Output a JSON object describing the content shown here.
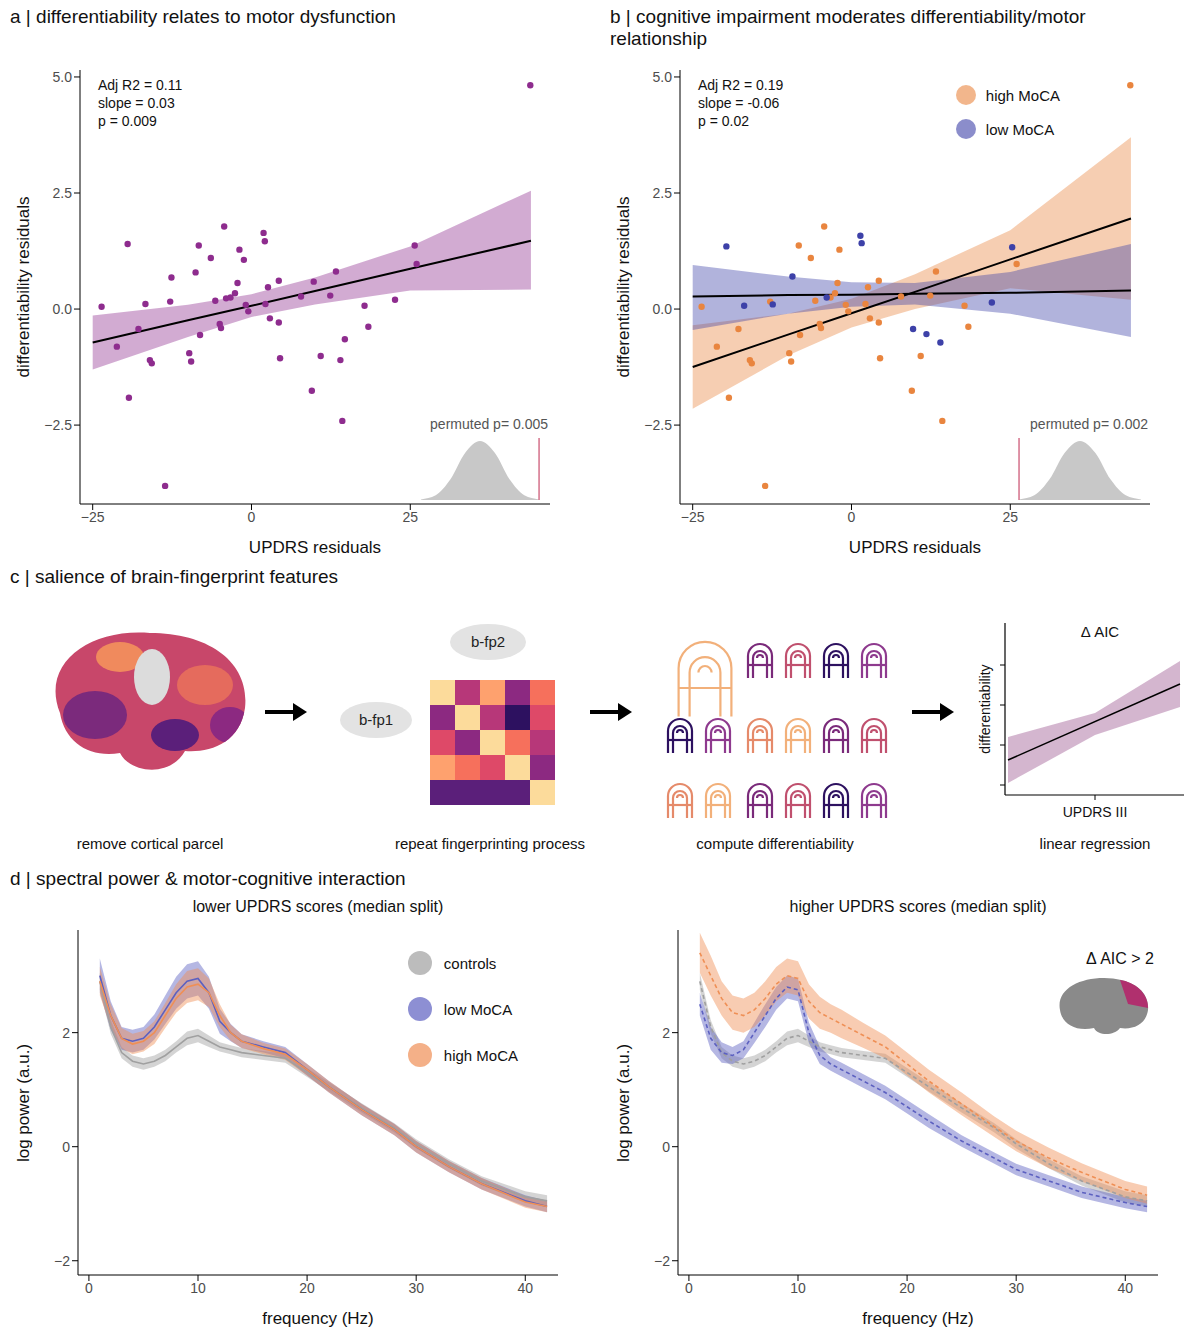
{
  "chart_data": [
    {
      "type": "scatter",
      "title": "a | differentiability relates to motor dysfunction",
      "x_label": "UPDRS residuals",
      "y_label": "differentiability residuals",
      "xlim": [
        -27,
        47
      ],
      "xticks": [
        {
          "value": -25,
          "label": "−25"
        },
        0,
        25
      ],
      "ylim": [
        -4.2,
        5.15
      ],
      "yticks": [
        {
          "value": -2.5,
          "label": "−2.5"
        },
        {
          "value": 0,
          "label": "0.0"
        },
        2.5,
        {
          "value": 5,
          "label": "5.0"
        }
      ],
      "annotations": [
        "Adj R2 = 0.11",
        "slope = 0.03",
        "p = 0.009"
      ],
      "permutation": {
        "label": "permuted p= 0.005",
        "x": [
          -0.03,
          -0.0225,
          -0.015,
          -0.0075,
          0,
          0.0075,
          0.015,
          0.0225,
          0.03
        ],
        "density": [
          0.01,
          0.08,
          0.35,
          0.8,
          1,
          0.8,
          0.35,
          0.08,
          0.01
        ],
        "observed": 0.03,
        "xlim": [
          -0.032,
          0.032
        ],
        "ylim": [
          0,
          1.05
        ],
        "tick_labels": false
      },
      "series": [
        {
          "color": "#8e2c8e",
          "x": [
            -23.6,
            -21.2,
            -19.5,
            -19.3,
            -17.8,
            -16.7,
            -16.0,
            -15.7,
            -13.6,
            -12.8,
            -12.6,
            -9.8,
            -9.5,
            -8.8,
            -8.3,
            -8.1,
            -6.4,
            -5.7,
            -5.0,
            -4.8,
            -4.3,
            -4.0,
            -3.3,
            -2.6,
            -2.2,
            -1.9,
            -1.2,
            -0.9,
            -0.5,
            1.9,
            2.1,
            2.2,
            2.6,
            2.9,
            4.3,
            4.3,
            4.5,
            7.8,
            9.5,
            9.8,
            10.9,
            12.4,
            13.3,
            14.0,
            14.3,
            14.7,
            17.8,
            18.4,
            22.6,
            25.7,
            26.0,
            43.9
          ],
          "values": [
            0.05,
            -0.81,
            1.4,
            -1.91,
            -0.43,
            0.11,
            -1.1,
            -1.17,
            -3.81,
            0.16,
            0.68,
            -0.95,
            -1.13,
            0.79,
            1.37,
            -0.56,
            1.1,
            0.18,
            -0.32,
            -0.41,
            1.78,
            0.23,
            0.25,
            0.34,
            0.56,
            1.28,
            1.06,
            0.09,
            -0.05,
            1.64,
            1.46,
            0.11,
            0.47,
            -0.2,
            0.61,
            -0.29,
            -1.06,
            0.27,
            -1.76,
            0.59,
            -1.01,
            0.29,
            0.81,
            -1.1,
            -2.41,
            -0.65,
            0.07,
            -0.38,
            0.2,
            1.37,
            0.97,
            4.82
          ],
          "fit": {
            "x": [
              -25,
              -10,
              0,
              10,
              25,
              44
            ],
            "values": [
              -0.72,
              -0.24,
              0.07,
              0.39,
              0.87,
              1.47
            ],
            "lower": [
              -1.3,
              -0.6,
              -0.17,
              0.1,
              0.4,
              0.42
            ],
            "upper": [
              -0.14,
              0.09,
              0.32,
              0.68,
              1.35,
              2.55
            ]
          }
        }
      ]
    },
    {
      "type": "scatter",
      "title": "b | cognitive impairment moderates differentiability/motor relationship",
      "x_label": "UPDRS residuals",
      "y_label": "differentiability residuals",
      "xlim": [
        -27,
        47
      ],
      "xticks": [
        {
          "value": -25,
          "label": "−25"
        },
        0,
        25
      ],
      "ylim": [
        -4.2,
        5.15
      ],
      "yticks": [
        {
          "value": -2.5,
          "label": "−2.5"
        },
        {
          "value": 0,
          "label": "0.0"
        },
        2.5,
        {
          "value": 5,
          "label": "5.0"
        }
      ],
      "annotations": [
        "Adj R2 = 0.19",
        "slope = -0.06",
        "p = 0.02"
      ],
      "legend": "top-right",
      "permutation": {
        "label": "permuted p= 0.002",
        "x": [
          -0.06,
          -0.045,
          -0.03,
          -0.015,
          0,
          0.015,
          0.03,
          0.045,
          0.06
        ],
        "density": [
          0.01,
          0.08,
          0.35,
          0.8,
          1,
          0.8,
          0.35,
          0.08,
          0.01
        ],
        "observed": -0.06,
        "xlim": [
          -0.062,
          0.062
        ],
        "ylim": [
          0,
          1.05
        ],
        "tick_labels": false
      },
      "series": [
        {
          "name": "high MoCA",
          "color": "#e9853f",
          "x": [
            -23.6,
            -21.2,
            -19.3,
            -17.8,
            -16.0,
            -15.7,
            -13.6,
            -12.8,
            -9.8,
            -9.5,
            -8.3,
            -8.1,
            -6.4,
            -5.7,
            -5.0,
            -4.8,
            -4.3,
            -3.3,
            -2.6,
            -2.2,
            -1.9,
            -0.9,
            -0.5,
            2.2,
            2.6,
            2.9,
            4.3,
            4.3,
            4.5,
            7.8,
            9.5,
            10.9,
            12.4,
            13.3,
            14.3,
            17.8,
            18.4,
            26.0,
            43.9
          ],
          "values": [
            0.05,
            -0.81,
            -1.91,
            -0.43,
            -1.1,
            -1.17,
            -3.81,
            0.16,
            -0.95,
            -1.13,
            1.37,
            -0.56,
            1.1,
            0.18,
            -0.32,
            -0.41,
            1.78,
            0.25,
            0.34,
            0.56,
            1.28,
            0.09,
            -0.05,
            0.11,
            0.47,
            -0.2,
            0.61,
            -0.29,
            -1.06,
            0.27,
            -1.76,
            -1.01,
            0.29,
            0.81,
            -2.41,
            0.07,
            -0.38,
            0.97,
            4.82
          ],
          "fit": {
            "x": [
              -25,
              -10,
              0,
              10,
              25,
              44
            ],
            "values": [
              -1.25,
              -0.55,
              -0.09,
              0.37,
              1.07,
              1.95
            ],
            "lower": [
              -2.15,
              -1.0,
              -0.4,
              0.0,
              0.45,
              0.2
            ],
            "upper": [
              -0.35,
              -0.1,
              0.22,
              0.75,
              1.7,
              3.7
            ]
          }
        },
        {
          "name": "low MoCA",
          "color": "#3d41a8",
          "x": [
            -19.7,
            -16.9,
            -12.4,
            -9.3,
            -3.9,
            1.4,
            1.6,
            9.7,
            11.8,
            14.0,
            22.1,
            25.3
          ],
          "values": [
            1.35,
            0.07,
            0.1,
            0.7,
            0.25,
            1.58,
            1.42,
            -0.43,
            -0.54,
            -0.72,
            0.14,
            1.33
          ],
          "fit": {
            "x": [
              -25,
              -10,
              0,
              10,
              25,
              44
            ],
            "values": [
              0.27,
              0.3,
              0.31,
              0.33,
              0.35,
              0.4
            ],
            "lower": [
              -0.45,
              -0.1,
              0.05,
              0.1,
              -0.1,
              -0.6
            ],
            "upper": [
              0.95,
              0.7,
              0.58,
              0.56,
              0.8,
              1.4
            ]
          }
        }
      ]
    },
    {
      "type": "line",
      "title": "lower UPDRS scores (median split)",
      "x_label": "frequency (Hz)",
      "y_label": "log power (a.u.)",
      "x": [
        1,
        2,
        3,
        4,
        5,
        6,
        7,
        8,
        9,
        10,
        11,
        12,
        13,
        14,
        16,
        18,
        20,
        22,
        25,
        28,
        30,
        33,
        36,
        40,
        42
      ],
      "xlim": [
        -1,
        43
      ],
      "xticks": [
        0,
        10,
        20,
        30,
        40
      ],
      "ylim": [
        -2.25,
        3.8
      ],
      "yticks": [
        {
          "value": -2,
          "label": "−2"
        },
        0,
        2
      ],
      "legend": "top-right",
      "series": [
        {
          "name": "controls",
          "color": "#a0a0a0",
          "line_style": "solid",
          "values": [
            2.9,
            2.1,
            1.65,
            1.5,
            1.45,
            1.5,
            1.6,
            1.75,
            1.9,
            1.95,
            1.85,
            1.75,
            1.7,
            1.65,
            1.6,
            1.55,
            1.3,
            1.05,
            0.68,
            0.33,
            0.05,
            -0.3,
            -0.6,
            -0.88,
            -0.95
          ],
          "error": [
            0.15,
            0.12,
            0.1,
            0.1,
            0.1,
            0.1,
            0.1,
            0.1,
            0.12,
            0.12,
            0.1,
            0.08,
            0.08,
            0.08,
            0.08,
            0.08,
            0.08,
            0.08,
            0.08,
            0.08,
            0.08,
            0.08,
            0.08,
            0.1,
            0.1
          ]
        },
        {
          "name": "low MoCA",
          "color": "#5c60c0",
          "line_style": "solid",
          "values": [
            3.0,
            2.3,
            1.9,
            1.85,
            1.9,
            2.1,
            2.4,
            2.7,
            2.9,
            2.95,
            2.7,
            2.2,
            2.0,
            1.85,
            1.75,
            1.65,
            1.35,
            1.05,
            0.65,
            0.3,
            0.0,
            -0.35,
            -0.65,
            -0.95,
            -1.05
          ],
          "error": [
            0.3,
            0.25,
            0.2,
            0.2,
            0.2,
            0.22,
            0.25,
            0.28,
            0.3,
            0.3,
            0.28,
            0.22,
            0.15,
            0.12,
            0.1,
            0.1,
            0.1,
            0.1,
            0.1,
            0.1,
            0.1,
            0.1,
            0.1,
            0.1,
            0.1
          ]
        },
        {
          "name": "high MoCA",
          "color": "#ef8f55",
          "line_style": "solid",
          "values": [
            2.9,
            2.3,
            1.9,
            1.8,
            1.85,
            2.0,
            2.3,
            2.6,
            2.8,
            2.85,
            2.7,
            2.3,
            2.0,
            1.85,
            1.72,
            1.62,
            1.35,
            1.05,
            0.65,
            0.3,
            0.0,
            -0.35,
            -0.65,
            -0.97,
            -1.05
          ],
          "error": [
            0.25,
            0.2,
            0.18,
            0.18,
            0.18,
            0.2,
            0.22,
            0.25,
            0.28,
            0.28,
            0.25,
            0.2,
            0.14,
            0.12,
            0.1,
            0.1,
            0.1,
            0.1,
            0.1,
            0.1,
            0.1,
            0.1,
            0.1,
            0.1,
            0.1
          ]
        }
      ]
    },
    {
      "type": "line",
      "title": "higher UPDRS scores (median split)",
      "x_label": "frequency (Hz)",
      "y_label": "log power (a.u.)",
      "x": [
        1,
        2,
        3,
        4,
        5,
        6,
        7,
        8,
        9,
        10,
        11,
        12,
        13,
        14,
        16,
        18,
        20,
        22,
        25,
        28,
        30,
        33,
        36,
        40,
        42
      ],
      "xlim": [
        -1,
        43
      ],
      "xticks": [
        0,
        10,
        20,
        30,
        40
      ],
      "ylim": [
        -2.25,
        3.8
      ],
      "yticks": [
        {
          "value": -2,
          "label": "−2"
        },
        0,
        2
      ],
      "annotation": "Δ AIC > 2",
      "series": [
        {
          "name": "controls",
          "color": "#a0a0a0",
          "line_style": "dashed",
          "values": [
            2.9,
            2.1,
            1.65,
            1.5,
            1.45,
            1.5,
            1.6,
            1.75,
            1.9,
            1.95,
            1.85,
            1.75,
            1.7,
            1.65,
            1.6,
            1.55,
            1.3,
            1.05,
            0.68,
            0.33,
            0.05,
            -0.3,
            -0.6,
            -0.88,
            -0.95
          ],
          "error": [
            0.15,
            0.12,
            0.1,
            0.1,
            0.1,
            0.1,
            0.1,
            0.1,
            0.12,
            0.12,
            0.1,
            0.08,
            0.08,
            0.08,
            0.08,
            0.08,
            0.08,
            0.08,
            0.08,
            0.08,
            0.08,
            0.08,
            0.08,
            0.1,
            0.1
          ]
        },
        {
          "name": "low MoCA",
          "color": "#5c60c0",
          "line_style": "dashed",
          "values": [
            2.5,
            1.9,
            1.65,
            1.6,
            1.7,
            2.0,
            2.3,
            2.6,
            2.8,
            2.75,
            2.0,
            1.6,
            1.45,
            1.35,
            1.15,
            0.95,
            0.7,
            0.45,
            0.1,
            -0.2,
            -0.4,
            -0.6,
            -0.8,
            -0.98,
            -1.05
          ],
          "error": [
            0.2,
            0.2,
            0.18,
            0.15,
            0.15,
            0.18,
            0.2,
            0.2,
            0.2,
            0.2,
            0.18,
            0.15,
            0.12,
            0.12,
            0.12,
            0.12,
            0.12,
            0.12,
            0.1,
            0.1,
            0.1,
            0.1,
            0.1,
            0.1,
            0.1
          ]
        },
        {
          "name": "high MoCA",
          "color": "#ef8f55",
          "line_style": "dashed",
          "values": [
            3.4,
            3.0,
            2.6,
            2.35,
            2.3,
            2.4,
            2.6,
            2.85,
            3.0,
            2.95,
            2.55,
            2.35,
            2.25,
            2.15,
            1.95,
            1.75,
            1.45,
            1.15,
            0.75,
            0.35,
            0.1,
            -0.2,
            -0.45,
            -0.75,
            -0.85
          ],
          "error": [
            0.35,
            0.35,
            0.3,
            0.3,
            0.3,
            0.3,
            0.3,
            0.3,
            0.3,
            0.3,
            0.3,
            0.28,
            0.25,
            0.25,
            0.22,
            0.2,
            0.2,
            0.2,
            0.2,
            0.18,
            0.18,
            0.18,
            0.16,
            0.15,
            0.15
          ]
        }
      ]
    }
  ],
  "diagram": {
    "title": "c | salience of brain-fingerprint features",
    "steps": [
      "remove cortical parcel",
      "repeat fingerprinting process",
      "compute differentiability",
      "linear regression"
    ],
    "fingerprint_labels": [
      "b-fp1",
      "b-fp2"
    ],
    "regression": {
      "title": "Δ AIC",
      "x_label": "UPDRS III",
      "y_label": "differentiability"
    }
  },
  "panel_d": {
    "title": "d | spectral power & motor-cognitive interaction"
  }
}
